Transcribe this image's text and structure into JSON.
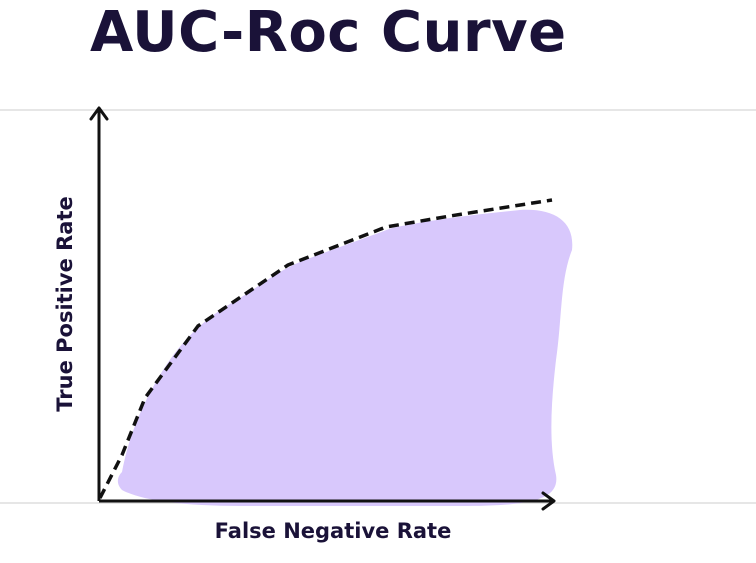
{
  "title": "AUC-Roc Curve",
  "axes": {
    "x_label": "False Negative Rate",
    "y_label": "True Positive Rate"
  },
  "colors": {
    "title": "#1a1238",
    "area_fill": "#d8c8fc",
    "curve": "#111111",
    "axis": "#111111",
    "rule": "#dddddd"
  },
  "elements": {
    "area": "area-under-curve",
    "curve_style": "dashed"
  }
}
